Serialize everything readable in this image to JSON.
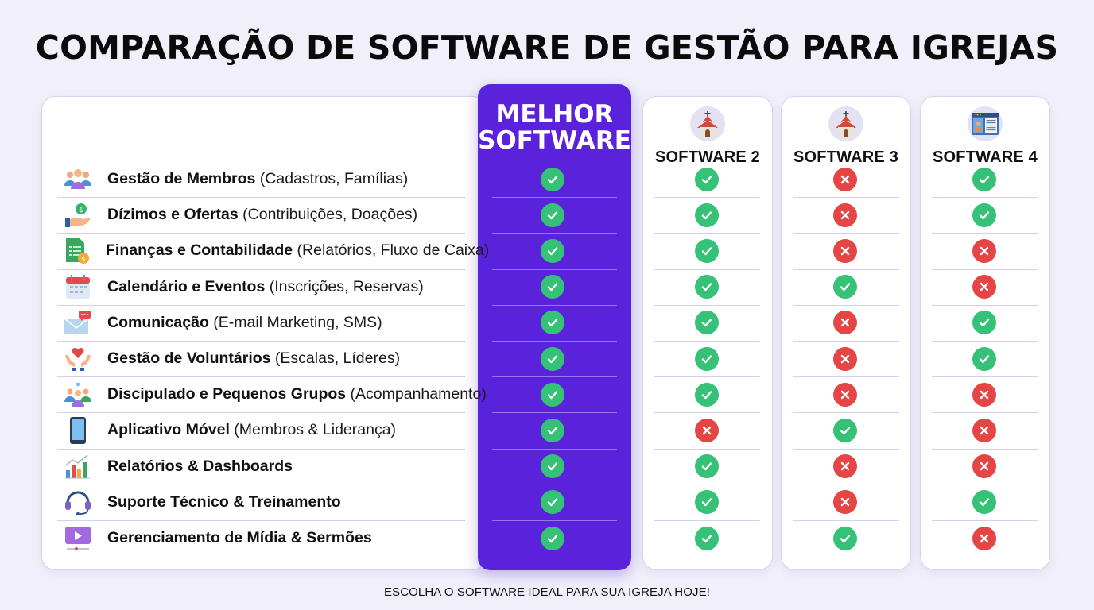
{
  "title": "COMPARAÇÃO DE SOFTWARE DE GESTÃO PARA IGREJAS",
  "footer": "ESCOLHA O SOFTWARE IDEAL PARA SUA IGREJA HOJE!",
  "columns": [
    {
      "name": "MELHOR SOFTWARE",
      "line1": "MELHOR",
      "line2": "SOFTWARE",
      "highlight": true,
      "icon": null
    },
    {
      "name": "SOFTWARE 2",
      "icon": "church-icon"
    },
    {
      "name": "SOFTWARE 3",
      "icon": "church-icon"
    },
    {
      "name": "SOFTWARE 4",
      "icon": "profile-window-icon"
    }
  ],
  "features": [
    {
      "bold": "Gestão de Membros",
      "detail": " (Cadastros, Famílias)",
      "icon": "members-icon",
      "status": [
        "yes",
        "yes",
        "no",
        "yes"
      ]
    },
    {
      "bold": "Dízimos e Ofertas",
      "detail": " (Contribuições, Doações)",
      "icon": "hand-coin-icon",
      "status": [
        "yes",
        "yes",
        "no",
        "yes"
      ]
    },
    {
      "bold": "Finanças e Contabilidade",
      "detail": " (Relatórios, Fluxo de Caixa)",
      "icon": "finance-sheet-icon",
      "status": [
        "yes",
        "yes",
        "no",
        "no"
      ]
    },
    {
      "bold": "Calendário e Eventos",
      "detail": " (Inscrições, Reservas)",
      "icon": "calendar-icon",
      "status": [
        "yes",
        "yes",
        "yes",
        "no"
      ]
    },
    {
      "bold": "Comunicação",
      "detail": " (E-mail Marketing, SMS)",
      "icon": "mail-chat-icon",
      "status": [
        "yes",
        "yes",
        "no",
        "yes"
      ]
    },
    {
      "bold": "Gestão de Voluntários",
      "detail": " (Escalas, Líderes)",
      "icon": "heart-hands-icon",
      "status": [
        "yes",
        "yes",
        "no",
        "yes"
      ]
    },
    {
      "bold": "Discipulado e Pequenos Grupos",
      "detail": " (Acompanhamento)",
      "icon": "group-icon",
      "status": [
        "yes",
        "yes",
        "no",
        "no"
      ]
    },
    {
      "bold": "Aplicativo Móvel",
      "detail": " (Membros & Liderança)",
      "icon": "smartphone-icon",
      "status": [
        "yes",
        "no",
        "yes",
        "no"
      ]
    },
    {
      "bold": "Relatórios & Dashboards",
      "detail": "",
      "icon": "bar-chart-icon",
      "status": [
        "yes",
        "yes",
        "no",
        "no"
      ]
    },
    {
      "bold": "Suporte Técnico & Treinamento",
      "detail": "",
      "icon": "headset-icon",
      "status": [
        "yes",
        "yes",
        "no",
        "yes"
      ]
    },
    {
      "bold": "Gerenciamento de Mídia & Sermões",
      "detail": "",
      "icon": "media-player-icon",
      "status": [
        "yes",
        "yes",
        "yes",
        "no"
      ]
    }
  ],
  "colors": {
    "background": "#f1f0fa",
    "highlight": "#5b22dc",
    "yes": "#35c176",
    "no": "#e64545"
  }
}
